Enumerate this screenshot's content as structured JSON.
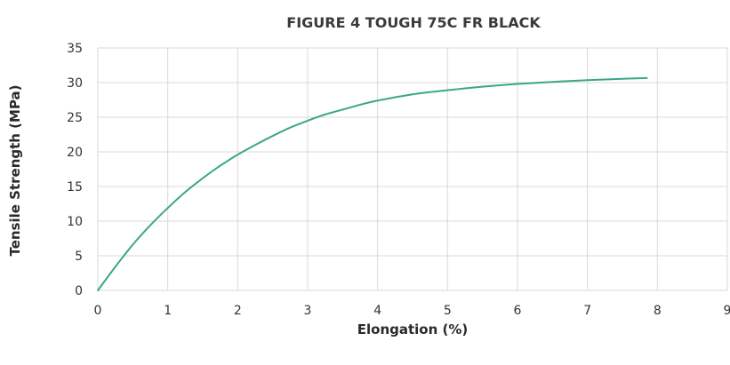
{
  "chart_data": {
    "type": "line",
    "title": "FIGURE 4 TOUGH 75C FR BLACK",
    "xlabel": "Elongation (%)",
    "ylabel": "Tensile Strength (MPa)",
    "xlim": [
      0,
      9
    ],
    "ylim": [
      0,
      35
    ],
    "x_ticks": [
      0,
      1,
      2,
      3,
      4,
      5,
      6,
      7,
      8,
      9
    ],
    "y_ticks": [
      0,
      5,
      10,
      15,
      20,
      25,
      30,
      35
    ],
    "grid": true,
    "legend": "none",
    "series": [
      {
        "color": "#3aa68c",
        "x": [
          0,
          0.25,
          0.5,
          0.75,
          1.0,
          1.25,
          1.5,
          1.75,
          2.0,
          2.25,
          2.5,
          2.75,
          3.0,
          3.25,
          3.5,
          3.75,
          4.0,
          4.5,
          5.0,
          5.5,
          6.0,
          6.5,
          7.0,
          7.5,
          7.85
        ],
        "y": [
          0,
          3.4,
          6.6,
          9.4,
          11.9,
          14.2,
          16.2,
          18.0,
          19.6,
          21.0,
          22.3,
          23.5,
          24.5,
          25.4,
          26.1,
          26.8,
          27.4,
          28.3,
          28.9,
          29.4,
          29.8,
          30.1,
          30.35,
          30.55,
          30.65
        ]
      }
    ]
  }
}
